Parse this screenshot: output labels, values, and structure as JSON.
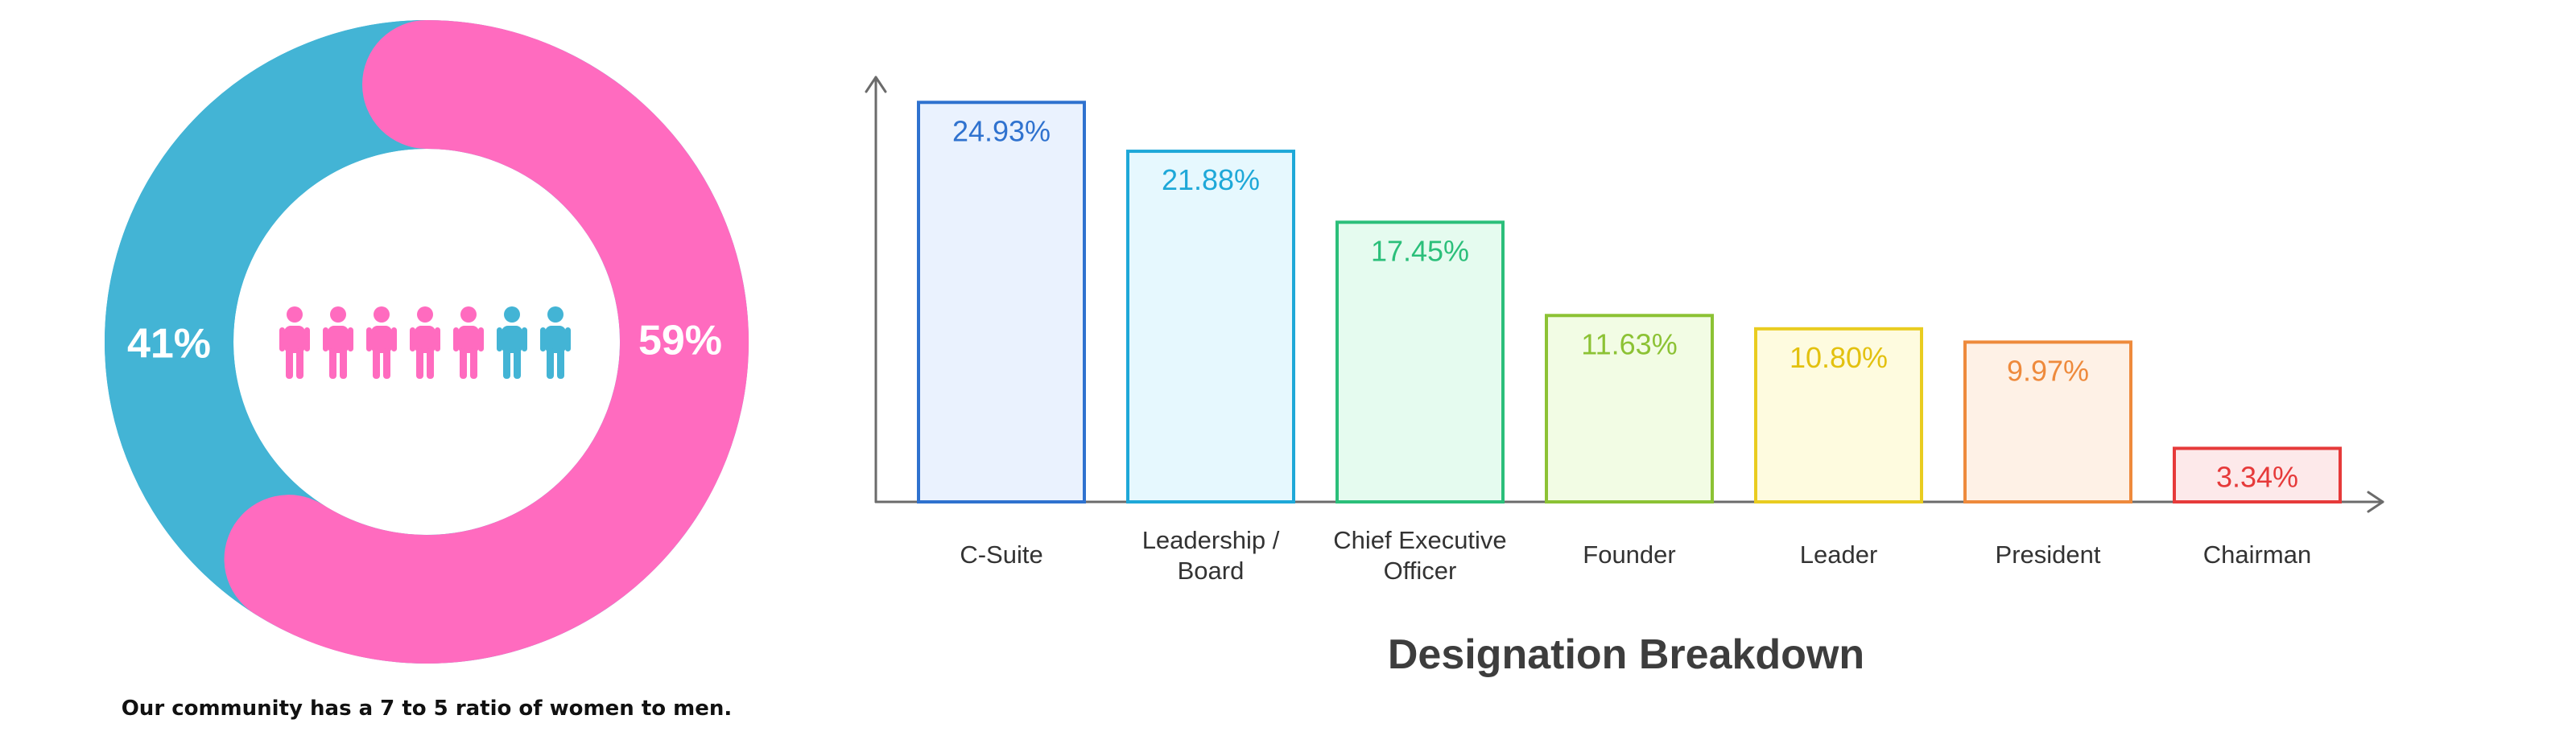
{
  "chart_data": [
    {
      "type": "pie",
      "style": "donut",
      "slices": [
        {
          "label": "41%",
          "value": 41,
          "color": "#43b4d5"
        },
        {
          "label": "59%",
          "value": 59,
          "color": "#ff6bbf"
        }
      ],
      "center_icons": [
        {
          "icon": "woman-figure-icon",
          "count": 5,
          "color": "#ff6bbf"
        },
        {
          "icon": "man-figure-icon",
          "count": 2,
          "color": "#43b4d5"
        }
      ],
      "caption": "Our community has a 7 to 5 ratio of women to men."
    },
    {
      "type": "bar",
      "title": "Designation Breakdown",
      "xlabel": "",
      "ylabel": "",
      "ylim": [
        0,
        26.5
      ],
      "grid": false,
      "categories": [
        [
          "C-Suite"
        ],
        [
          "Leadership /",
          "Board"
        ],
        [
          "Chief Executive",
          "Officer"
        ],
        [
          "Founder"
        ],
        [
          "Leader"
        ],
        [
          "President"
        ],
        [
          "Chairman"
        ]
      ],
      "values": [
        24.93,
        21.88,
        17.45,
        11.63,
        10.8,
        9.97,
        3.34
      ],
      "data_labels": [
        "24.93%",
        "21.88%",
        "17.45%",
        "11.63%",
        "10.80%",
        "9.97%",
        "3.34%"
      ],
      "bar_colors": [
        {
          "stroke": "#2f72cf",
          "fill": "#eaf2fe",
          "text": "#2f72cf"
        },
        {
          "stroke": "#1ea8d8",
          "fill": "#e6f8fe",
          "text": "#1ea8d8"
        },
        {
          "stroke": "#2bbf7a",
          "fill": "#e5fbef",
          "text": "#2bbf7a"
        },
        {
          "stroke": "#8cc234",
          "fill": "#f2fce4",
          "text": "#8cc234"
        },
        {
          "stroke": "#e9cc20",
          "fill": "#fefbdf",
          "text": "#e3c10f"
        },
        {
          "stroke": "#ee8a3c",
          "fill": "#fef1e6",
          "text": "#ee8a3c"
        },
        {
          "stroke": "#e63a3a",
          "fill": "#fde9ea",
          "text": "#e63a3a"
        }
      ]
    }
  ]
}
